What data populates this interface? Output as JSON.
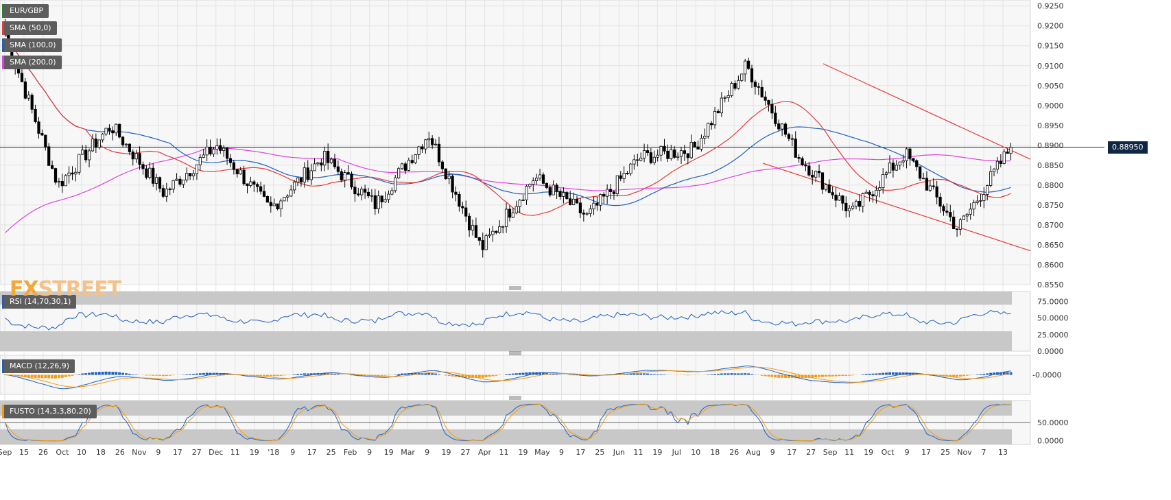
{
  "legend": {
    "symbol": {
      "label": "EUR/GBP",
      "color": "#2e7d32"
    },
    "sma50": {
      "label": "SMA (50,0)",
      "color": "#e53935"
    },
    "sma100": {
      "label": "SMA (100,0)",
      "color": "#1e5fbf"
    },
    "sma200": {
      "label": "SMA (200,0)",
      "color": "#e040e0"
    },
    "rsi": {
      "label": "RSI (14,70,30,1)",
      "color": "#1e5fbf"
    },
    "macd": {
      "label": "MACD (12,26,9)",
      "color": "#1e5fbf"
    },
    "fusto": {
      "label": "FUSTO (14,3,3,80,20)",
      "color": "#f39c12"
    }
  },
  "current_price": "0.88950",
  "logo": {
    "x": "FX",
    "rest": "STREET"
  },
  "chart_data": [
    {
      "type": "candlestick",
      "panel": "price",
      "ylim": [
        0.855,
        0.9265
      ],
      "yticks": [
        "0.9250",
        "0.9200",
        "0.9150",
        "0.9100",
        "0.9050",
        "0.9000",
        "0.8950",
        "0.8900",
        "0.8850",
        "0.8800",
        "0.8750",
        "0.8700",
        "0.8650",
        "0.8600",
        "0.8550"
      ],
      "xticks": [
        "Sep",
        "15",
        "26",
        "Oct",
        "10",
        "18",
        "26",
        "Nov",
        "9",
        "17",
        "27",
        "Dec",
        "11",
        "19",
        "'18",
        "9",
        "17",
        "25",
        "Feb",
        "9",
        "19",
        "Mar",
        "9",
        "19",
        "27",
        "Apr",
        "11",
        "19",
        "May",
        "9",
        "17",
        "25",
        "Jun",
        "11",
        "19",
        "Jul",
        "10",
        "18",
        "26",
        "Aug",
        "9",
        "17",
        "27",
        "Sep",
        "11",
        "19",
        "Oct",
        "9",
        "17",
        "25",
        "Nov",
        "7",
        "13"
      ],
      "key_closes": [
        {
          "label": "Sep",
          "value": 0.918
        },
        {
          "label": "Oct",
          "value": 0.88
        },
        {
          "label": "Oct",
          "value": 0.895
        },
        {
          "label": "Nov",
          "value": 0.878
        },
        {
          "label": "Dec",
          "value": 0.89
        },
        {
          "label": "Dec",
          "value": 0.874
        },
        {
          "label": "Dec",
          "value": 0.887
        },
        {
          "label": "Feb",
          "value": 0.875
        },
        {
          "label": "Mar",
          "value": 0.893
        },
        {
          "label": "Apr",
          "value": 0.864
        },
        {
          "label": "May",
          "value": 0.882
        },
        {
          "label": "Jun",
          "value": 0.872
        },
        {
          "label": "Jul",
          "value": 0.887
        },
        {
          "label": "Aug",
          "value": 0.889
        },
        {
          "label": "Aug",
          "value": 0.91
        },
        {
          "label": "Sep",
          "value": 0.887
        },
        {
          "label": "Oct",
          "value": 0.873
        },
        {
          "label": "Oct",
          "value": 0.888
        },
        {
          "label": "Nov",
          "value": 0.869
        },
        {
          "label": "Nov",
          "value": 0.8895
        }
      ],
      "current": 0.8895,
      "trend_upper": [
        0.9105,
        0.8865
      ],
      "trend_lower": [
        0.8855,
        0.8635
      ]
    },
    {
      "type": "line",
      "panel": "rsi",
      "ylim": [
        0,
        90
      ],
      "yticks": [
        "75.0000",
        "50.0000",
        "25.0000",
        "0.0000"
      ],
      "overbought": 70,
      "oversold": 30
    },
    {
      "type": "histogram+line",
      "panel": "macd",
      "yticks": [
        "-0.0000"
      ]
    },
    {
      "type": "line",
      "panel": "fusto",
      "ylim": [
        -10,
        110
      ],
      "yticks": [
        "50.0000",
        "0.0000"
      ],
      "upper": 80,
      "lower": 20
    }
  ]
}
